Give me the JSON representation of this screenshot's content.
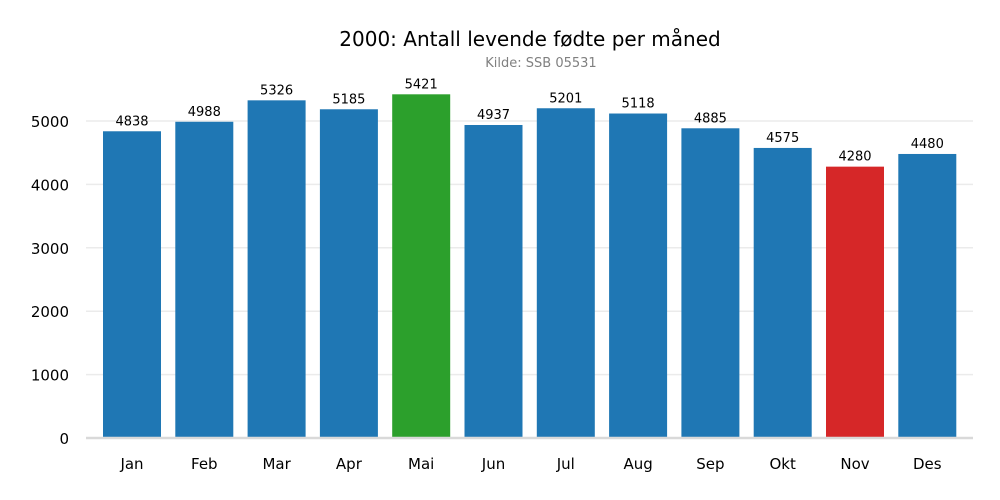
{
  "chart_data": {
    "type": "bar",
    "title": "2000: Antall levende fødte per måned",
    "subtitle": "Kilde: SSB 05531",
    "xlabel": "",
    "ylabel": "",
    "categories": [
      "Jan",
      "Feb",
      "Mar",
      "Apr",
      "Mai",
      "Jun",
      "Jul",
      "Aug",
      "Sep",
      "Okt",
      "Nov",
      "Des"
    ],
    "values": [
      4838,
      4988,
      5326,
      5185,
      5421,
      4937,
      5201,
      5118,
      4885,
      4575,
      4280,
      4480
    ],
    "bar_colors": [
      "#1f77b4",
      "#1f77b4",
      "#1f77b4",
      "#1f77b4",
      "#2ca02c",
      "#1f77b4",
      "#1f77b4",
      "#1f77b4",
      "#1f77b4",
      "#1f77b4",
      "#d62728",
      "#1f77b4"
    ],
    "yticks": [
      0,
      1000,
      2000,
      3000,
      4000,
      5000
    ],
    "ylim": [
      0,
      5700
    ],
    "grid": "horizontal",
    "data_labels": true,
    "colors": {
      "default": "#1f77b4",
      "max": "#2ca02c",
      "min": "#d62728"
    }
  }
}
